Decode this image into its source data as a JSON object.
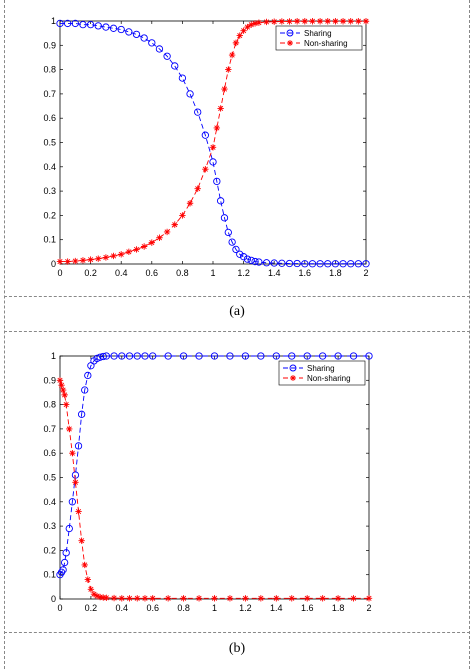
{
  "panels": [
    {
      "caption": "(a)"
    },
    {
      "caption": "(b)"
    }
  ],
  "chart_data": [
    {
      "type": "line",
      "title": "",
      "xlabel": "",
      "ylabel": "",
      "xlim": [
        0,
        2
      ],
      "ylim": [
        0,
        1
      ],
      "x_ticks": [
        "0",
        "0.2",
        "0.4",
        "0.6",
        "0.8",
        "1",
        "1.2",
        "1.4",
        "1.6",
        "1.8",
        "2"
      ],
      "y_ticks": [
        "0",
        "0.1",
        "0.2",
        "0.3",
        "0.4",
        "0.5",
        "0.6",
        "0.7",
        "0.8",
        "0.9",
        "1"
      ],
      "grid": false,
      "legend": "top-right",
      "series": [
        {
          "name": "Sharing",
          "color": "#0000ff",
          "marker": "circle",
          "line": "dashed",
          "x": [
            0,
            0.05,
            0.1,
            0.15,
            0.2,
            0.25,
            0.3,
            0.35,
            0.4,
            0.45,
            0.5,
            0.55,
            0.6,
            0.65,
            0.7,
            0.75,
            0.8,
            0.85,
            0.9,
            0.95,
            1,
            1.025,
            1.05,
            1.075,
            1.1,
            1.125,
            1.15,
            1.175,
            1.2,
            1.225,
            1.25,
            1.275,
            1.3,
            1.35,
            1.4,
            1.45,
            1.5,
            1.55,
            1.6,
            1.65,
            1.7,
            1.75,
            1.8,
            1.85,
            1.9,
            1.95,
            2
          ],
          "values": [
            0.99,
            0.99,
            0.99,
            0.985,
            0.985,
            0.98,
            0.975,
            0.97,
            0.965,
            0.955,
            0.945,
            0.93,
            0.91,
            0.885,
            0.855,
            0.815,
            0.765,
            0.7,
            0.625,
            0.53,
            0.42,
            0.34,
            0.26,
            0.19,
            0.13,
            0.09,
            0.06,
            0.04,
            0.03,
            0.02,
            0.015,
            0.01,
            0.008,
            0.005,
            0.004,
            0.003,
            0.002,
            0.002,
            0.001,
            0.001,
            0.001,
            0.001,
            0.001,
            0.001,
            0.001,
            0.001,
            0.001
          ]
        },
        {
          "name": "Non-sharing",
          "color": "#ff0000",
          "marker": "star",
          "line": "dashed",
          "x": [
            0,
            0.05,
            0.1,
            0.15,
            0.2,
            0.25,
            0.3,
            0.35,
            0.4,
            0.45,
            0.5,
            0.55,
            0.6,
            0.65,
            0.7,
            0.75,
            0.8,
            0.85,
            0.9,
            0.95,
            1,
            1.025,
            1.05,
            1.075,
            1.1,
            1.125,
            1.15,
            1.175,
            1.2,
            1.225,
            1.25,
            1.275,
            1.3,
            1.35,
            1.4,
            1.45,
            1.5,
            1.55,
            1.6,
            1.65,
            1.7,
            1.75,
            1.8,
            1.85,
            1.9,
            1.95,
            2
          ],
          "values": [
            0.01,
            0.01,
            0.012,
            0.015,
            0.018,
            0.022,
            0.027,
            0.033,
            0.04,
            0.05,
            0.06,
            0.072,
            0.088,
            0.108,
            0.132,
            0.162,
            0.2,
            0.25,
            0.31,
            0.39,
            0.48,
            0.56,
            0.64,
            0.72,
            0.8,
            0.86,
            0.91,
            0.94,
            0.96,
            0.975,
            0.985,
            0.99,
            0.993,
            0.996,
            0.997,
            0.998,
            0.998,
            0.999,
            0.999,
            0.999,
            0.999,
            0.999,
            0.999,
            0.999,
            0.999,
            0.999,
            0.999
          ]
        }
      ]
    },
    {
      "type": "line",
      "title": "",
      "xlabel": "",
      "ylabel": "",
      "xlim": [
        0,
        2
      ],
      "ylim": [
        0,
        1
      ],
      "x_ticks": [
        "0",
        "0.2",
        "0.4",
        "0.6",
        "0.8",
        "1",
        "1.2",
        "1.4",
        "1.6",
        "1.8",
        "2"
      ],
      "y_ticks": [
        "0",
        "0.1",
        "0.2",
        "0.3",
        "0.4",
        "0.5",
        "0.6",
        "0.7",
        "0.8",
        "0.9",
        "1"
      ],
      "grid": false,
      "legend": "top-right",
      "series": [
        {
          "name": "Sharing",
          "color": "#0000ff",
          "marker": "circle",
          "line": "dashed",
          "x": [
            0,
            0.01,
            0.02,
            0.03,
            0.04,
            0.06,
            0.08,
            0.1,
            0.12,
            0.14,
            0.16,
            0.18,
            0.2,
            0.22,
            0.24,
            0.26,
            0.28,
            0.3,
            0.35,
            0.4,
            0.45,
            0.5,
            0.55,
            0.6,
            0.7,
            0.8,
            0.9,
            1,
            1.1,
            1.2,
            1.3,
            1.4,
            1.5,
            1.6,
            1.7,
            1.8,
            1.9,
            2
          ],
          "values": [
            0.1,
            0.11,
            0.12,
            0.15,
            0.19,
            0.29,
            0.4,
            0.51,
            0.63,
            0.76,
            0.86,
            0.92,
            0.96,
            0.98,
            0.99,
            0.995,
            0.998,
            1,
            1,
            1,
            1,
            1,
            1,
            1,
            1,
            1,
            1,
            1,
            1,
            1,
            1,
            1,
            1,
            1,
            1,
            1,
            1,
            1
          ]
        },
        {
          "name": "Non-sharing",
          "color": "#ff0000",
          "marker": "star",
          "line": "dashed",
          "x": [
            0,
            0.01,
            0.02,
            0.03,
            0.04,
            0.06,
            0.08,
            0.1,
            0.12,
            0.14,
            0.16,
            0.18,
            0.2,
            0.22,
            0.24,
            0.26,
            0.28,
            0.3,
            0.35,
            0.4,
            0.45,
            0.5,
            0.55,
            0.6,
            0.7,
            0.8,
            0.9,
            1,
            1.1,
            1.2,
            1.3,
            1.4,
            1.5,
            1.6,
            1.7,
            1.8,
            1.9,
            2
          ],
          "values": [
            0.9,
            0.88,
            0.86,
            0.84,
            0.8,
            0.7,
            0.6,
            0.48,
            0.36,
            0.24,
            0.14,
            0.08,
            0.04,
            0.02,
            0.012,
            0.008,
            0.006,
            0.005,
            0.004,
            0.003,
            0.003,
            0.003,
            0.003,
            0.003,
            0.003,
            0.003,
            0.003,
            0.003,
            0.003,
            0.003,
            0.003,
            0.003,
            0.003,
            0.003,
            0.003,
            0.003,
            0.003,
            0.003
          ]
        }
      ]
    }
  ]
}
